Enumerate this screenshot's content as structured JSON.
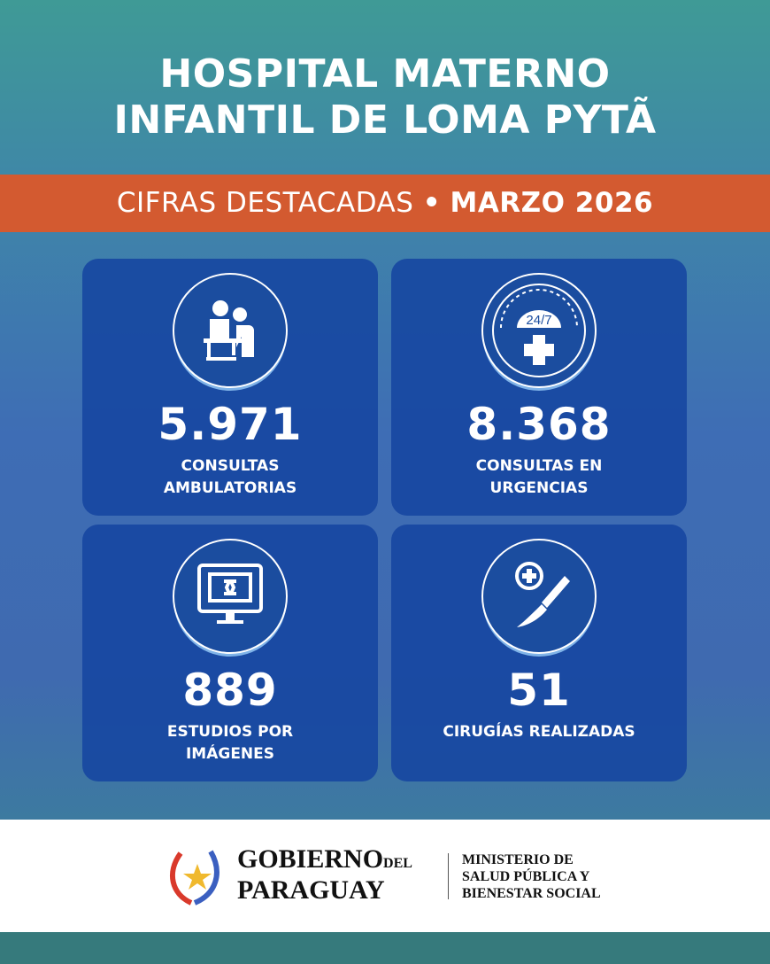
{
  "header": {
    "title_line1": "HOSPITAL MATERNO",
    "title_line2": "INFANTIL DE LOMA PYTÃ"
  },
  "band": {
    "label": "CIFRAS DESTACADAS",
    "separator": "•",
    "period": "MARZO 2026",
    "color": "#d35a30"
  },
  "stats": [
    {
      "icon": "doctor-consultation-icon",
      "value": "5.971",
      "label_line1": "CONSULTAS",
      "label_line2": "AMBULATORIAS"
    },
    {
      "icon": "emergency-24-7-icon",
      "icon_text": "24/7",
      "value": "8.368",
      "label_line1": "CONSULTAS EN",
      "label_line2": "URGENCIAS"
    },
    {
      "icon": "imaging-monitor-icon",
      "value": "889",
      "label_line1": "ESTUDIOS POR",
      "label_line2": "IMÁGENES"
    },
    {
      "icon": "scalpel-surgery-icon",
      "value": "51",
      "label_line1": "CIRUGÍAS REALIZADAS",
      "label_line2": ""
    }
  ],
  "footer": {
    "gov_line1": "GOBIERNO",
    "gov_del": "DEL",
    "gov_line2": "PARAGUAY",
    "ministry_line1": "MINISTERIO DE",
    "ministry_line2": "SALUD PÚBLICA Y",
    "ministry_line3": "BIENESTAR SOCIAL"
  }
}
